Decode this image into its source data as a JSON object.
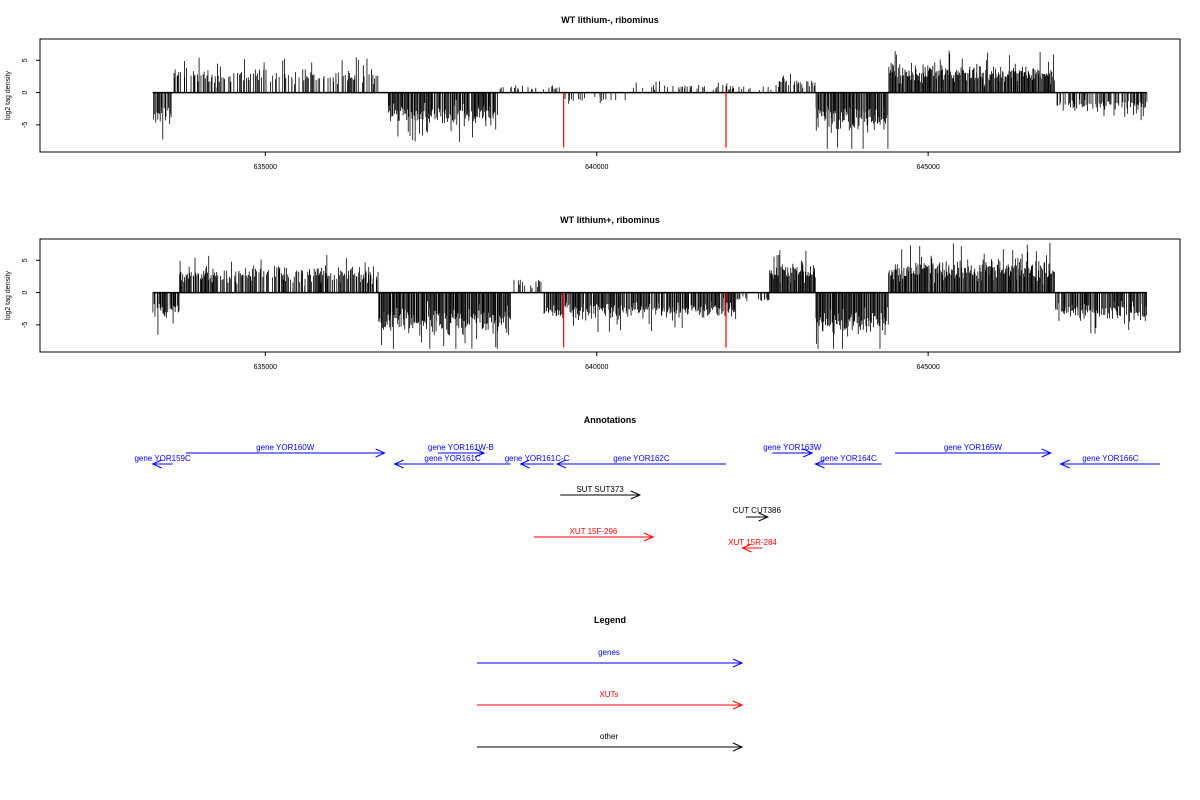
{
  "chart_data": [
    {
      "type": "bar",
      "title": "WT lithium-, ribominus",
      "ylabel": "log2 tag density",
      "xlim": [
        631600,
        648800
      ],
      "ylim": [
        -9.2,
        8.3
      ],
      "xticks": [
        635000,
        640000,
        645000
      ],
      "xtick_labels": [
        "635000",
        "640000",
        "645000"
      ],
      "yticks": [
        -5,
        0,
        5
      ],
      "ytick_labels": [
        "-5",
        "0",
        "5"
      ],
      "track_range": [
        633300,
        648300
      ],
      "bar_color": "#000000",
      "markers": [
        {
          "x": 639500,
          "y": -8.5,
          "color": "#ff0000"
        },
        {
          "x": 641950,
          "y": -8.5,
          "color": "#ff0000"
        }
      ],
      "segments": [
        {
          "from": 633300,
          "to": 633600,
          "y": -3.5,
          "density": 0.7
        },
        {
          "from": 633600,
          "to": 636700,
          "y": 2.5,
          "density": 0.45
        },
        {
          "from": 636850,
          "to": 638500,
          "y": -3.5,
          "density": 0.9
        },
        {
          "from": 638500,
          "to": 639500,
          "y": 0.8,
          "density": 0.3
        },
        {
          "from": 639500,
          "to": 640500,
          "y": -1.2,
          "density": 0.2
        },
        {
          "from": 640500,
          "to": 642700,
          "y": 0.8,
          "density": 0.25
        },
        {
          "from": 642700,
          "to": 643300,
          "y": 1.5,
          "density": 0.6
        },
        {
          "from": 643300,
          "to": 644400,
          "y": -4.2,
          "density": 1.0
        },
        {
          "from": 644400,
          "to": 646900,
          "y": 3.0,
          "density": 1.0
        },
        {
          "from": 646900,
          "to": 648300,
          "y": -2.0,
          "density": 0.55
        }
      ]
    },
    {
      "type": "bar",
      "title": "WT lithium+, ribominus",
      "ylabel": "log2 tag density",
      "xlim": [
        631600,
        648800
      ],
      "ylim": [
        -9.2,
        8.3
      ],
      "xticks": [
        635000,
        640000,
        645000
      ],
      "xtick_labels": [
        "635000",
        "640000",
        "645000"
      ],
      "yticks": [
        -5,
        0,
        5
      ],
      "ytick_labels": [
        "-5",
        "0",
        "5"
      ],
      "track_range": [
        633300,
        648300
      ],
      "bar_color": "#000000",
      "markers": [
        {
          "x": 639500,
          "y": -8.5,
          "color": "#ff0000"
        },
        {
          "x": 641950,
          "y": -8.5,
          "color": "#ff0000"
        }
      ],
      "segments": [
        {
          "from": 633300,
          "to": 633700,
          "y": -3.0,
          "density": 0.8
        },
        {
          "from": 633700,
          "to": 636700,
          "y": 2.8,
          "density": 0.7
        },
        {
          "from": 636700,
          "to": 638700,
          "y": -4.5,
          "density": 1.0
        },
        {
          "from": 638700,
          "to": 639200,
          "y": 1.5,
          "density": 0.4
        },
        {
          "from": 639200,
          "to": 642100,
          "y": -2.8,
          "density": 0.9
        },
        {
          "from": 642100,
          "to": 642600,
          "y": -1.0,
          "density": 0.4
        },
        {
          "from": 642600,
          "to": 643300,
          "y": 3.2,
          "density": 1.0
        },
        {
          "from": 643300,
          "to": 644400,
          "y": -4.5,
          "density": 1.0
        },
        {
          "from": 644400,
          "to": 646900,
          "y": 3.5,
          "density": 1.0
        },
        {
          "from": 646900,
          "to": 648300,
          "y": -3.0,
          "density": 0.9
        }
      ]
    }
  ],
  "annotations": {
    "title": "Annotations",
    "features": [
      {
        "label": "gene YOR159C",
        "start": 633300,
        "end": 633600,
        "strand": "-",
        "color": "#0000ff",
        "row": 1
      },
      {
        "label": "gene YOR160W",
        "start": 633800,
        "end": 636800,
        "strand": "+",
        "color": "#0000ff",
        "row": 0
      },
      {
        "label": "gene YOR161C",
        "start": 636950,
        "end": 638700,
        "strand": "-",
        "color": "#0000ff",
        "row": 1
      },
      {
        "label": "gene YOR161W-B",
        "start": 637600,
        "end": 638300,
        "strand": "+",
        "color": "#0000ff",
        "row": 0
      },
      {
        "label": "gene YOR161C-C",
        "start": 638850,
        "end": 639350,
        "strand": "-",
        "color": "#0000ff",
        "row": 1
      },
      {
        "label": "gene YOR162C",
        "start": 639400,
        "end": 641950,
        "strand": "-",
        "color": "#0000ff",
        "row": 1
      },
      {
        "label": "gene YOR163W",
        "start": 642650,
        "end": 643250,
        "strand": "+",
        "color": "#0000ff",
        "row": 0
      },
      {
        "label": "gene YOR164C",
        "start": 643300,
        "end": 644300,
        "strand": "-",
        "color": "#0000ff",
        "row": 1
      },
      {
        "label": "gene YOR165W",
        "start": 644500,
        "end": 646850,
        "strand": "+",
        "color": "#0000ff",
        "row": 0
      },
      {
        "label": "gene YOR166C",
        "start": 647000,
        "end": 648500,
        "strand": "-",
        "color": "#0000ff",
        "row": 1
      },
      {
        "label": "SUT SUT373",
        "start": 639450,
        "end": 640650,
        "strand": "+",
        "color": "#000000",
        "row": 2
      },
      {
        "label": "CUT CUT386",
        "start": 642250,
        "end": 642580,
        "strand": "+",
        "color": "#000000",
        "row": 3
      },
      {
        "label": "XUT 15F-296",
        "start": 639050,
        "end": 640850,
        "strand": "+",
        "color": "#ff0000",
        "row": 4
      },
      {
        "label": "XUT 15R-284",
        "start": 642200,
        "end": 642500,
        "strand": "-",
        "color": "#ff0000",
        "row": 5
      }
    ]
  },
  "legend": {
    "title": "Legend",
    "items": [
      {
        "label": "genes",
        "color": "#0000ff"
      },
      {
        "label": "XUTs",
        "color": "#ff0000"
      },
      {
        "label": "other",
        "color": "#000000"
      }
    ]
  }
}
